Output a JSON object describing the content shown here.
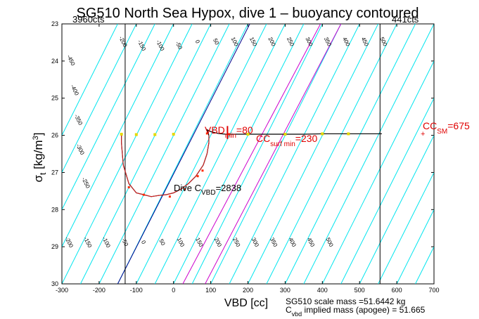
{
  "chart_data": {
    "type": "line",
    "title": "SG510 North Sea Hypox, dive 1 – buoyancy contoured",
    "xlabel": "VBD [cc]",
    "ylabel_main": "σ",
    "ylabel_sub": "t",
    "ylabel_unit": " [kg/m",
    "ylabel_sup": "3",
    "ylabel_close": "]",
    "xlim": [
      -300,
      700
    ],
    "ylim": [
      23,
      30
    ],
    "y_reversed": true,
    "xticks": [
      -300,
      -200,
      -100,
      0,
      100,
      200,
      300,
      400,
      500,
      600,
      700
    ],
    "yticks": [
      23,
      24,
      25,
      26,
      27,
      28,
      29,
      30
    ],
    "corner_left": "3960cts",
    "corner_right": "441cts",
    "contour_color": "#00e5ee",
    "contour_labels_top": [
      {
        "text": "-450",
        "x": -280,
        "y": 24.0
      },
      {
        "text": "-400",
        "x": -270,
        "y": 24.8
      },
      {
        "text": "-350",
        "x": -260,
        "y": 25.6
      },
      {
        "text": "-300",
        "x": -255,
        "y": 26.4
      },
      {
        "text": "-250",
        "x": -240,
        "y": 27.3
      },
      {
        "text": "-200",
        "x": -140,
        "y": 23.5
      },
      {
        "text": "-150",
        "x": -90,
        "y": 23.6
      },
      {
        "text": "-100",
        "x": -40,
        "y": 23.6
      },
      {
        "text": "-50",
        "x": 10,
        "y": 23.6
      },
      {
        "text": "0",
        "x": 60,
        "y": 23.5
      },
      {
        "text": "50",
        "x": 110,
        "y": 23.5
      },
      {
        "text": "100",
        "x": 160,
        "y": 23.5
      },
      {
        "text": "150",
        "x": 210,
        "y": 23.5
      },
      {
        "text": "200",
        "x": 260,
        "y": 23.5
      },
      {
        "text": "250",
        "x": 310,
        "y": 23.5
      },
      {
        "text": "300",
        "x": 360,
        "y": 23.5
      },
      {
        "text": "350",
        "x": 410,
        "y": 23.5
      },
      {
        "text": "400",
        "x": 460,
        "y": 23.5
      },
      {
        "text": "450",
        "x": 510,
        "y": 23.5
      },
      {
        "text": "500",
        "x": 560,
        "y": 23.5
      }
    ],
    "contour_labels_bottom": [
      {
        "text": "-200",
        "x": -285,
        "y": 28.9
      },
      {
        "text": "-150",
        "x": -235,
        "y": 28.9
      },
      {
        "text": "-100",
        "x": -185,
        "y": 28.9
      },
      {
        "text": "-50",
        "x": -135,
        "y": 28.9
      },
      {
        "text": "0",
        "x": -85,
        "y": 28.9
      },
      {
        "text": "50",
        "x": -35,
        "y": 28.9
      },
      {
        "text": "100",
        "x": 15,
        "y": 28.9
      },
      {
        "text": "150",
        "x": 65,
        "y": 28.9
      },
      {
        "text": "200",
        "x": 115,
        "y": 28.9
      },
      {
        "text": "250",
        "x": 165,
        "y": 28.9
      },
      {
        "text": "300",
        "x": 215,
        "y": 28.9
      },
      {
        "text": "350",
        "x": 265,
        "y": 28.9
      },
      {
        "text": "400",
        "x": 315,
        "y": 28.9
      },
      {
        "text": "450",
        "x": 365,
        "y": 28.9
      },
      {
        "text": "500",
        "x": 415,
        "y": 28.9
      }
    ],
    "colored_lines": [
      {
        "color": "#00008b",
        "x": [
          -150,
          205
        ]
      },
      {
        "color": "#cc00cc",
        "x": [
          25,
          395
        ]
      },
      {
        "color": "#cc00cc",
        "x": [
          85,
          450
        ]
      }
    ],
    "limit_lines_x": [
      -130,
      555
    ],
    "dive_trace": {
      "x": [
        -140,
        -140,
        -135,
        -120,
        -100,
        -80,
        -60,
        -40,
        -20,
        0,
        20,
        40,
        60,
        80,
        90,
        95,
        95,
        92,
        90,
        100,
        120,
        140,
        170,
        200,
        250,
        300,
        350,
        400,
        450,
        500,
        560
      ],
      "y": [
        26.0,
        26.2,
        26.8,
        27.3,
        27.55,
        27.6,
        27.65,
        27.62,
        27.6,
        27.55,
        27.45,
        27.3,
        27.1,
        26.8,
        26.5,
        26.2,
        26.0,
        25.9,
        25.85,
        25.9,
        25.95,
        25.97,
        25.97,
        25.97,
        25.97,
        25.97,
        25.97,
        25.96,
        25.96,
        25.96,
        25.96
      ]
    },
    "yellow_markers": {
      "x": [
        -140,
        -100,
        -50,
        0,
        200,
        300,
        400,
        470
      ],
      "y": [
        25.97,
        25.98,
        25.98,
        25.97,
        25.97,
        25.97,
        25.96,
        25.96
      ]
    },
    "red_markers": {
      "x": [
        -120,
        -80,
        -10,
        30,
        65,
        78,
        90,
        150
      ],
      "y": [
        27.4,
        27.6,
        27.65,
        27.45,
        27.1,
        26.95,
        25.95,
        25.97
      ]
    },
    "annotations": {
      "vbd_main": "VBD",
      "vbd_sub": "min",
      "vbd_val": "=80",
      "cc_surf_main": "CC",
      "cc_surf_sub": "surf min",
      "cc_surf_val": "=230",
      "cc_sm_main": "CC",
      "cc_sm_sub": "SM",
      "cc_sm_val": "=675",
      "dive_main": "Dive C",
      "dive_sub": "VBD",
      "dive_val": "=2838"
    },
    "footer_line1": "SG510 scale mass =51.6442 kg",
    "footer_line2_main": "C",
    "footer_line2_sub": "vbd",
    "footer_line2_rest": " implied mass (apogee) = 51.665"
  }
}
